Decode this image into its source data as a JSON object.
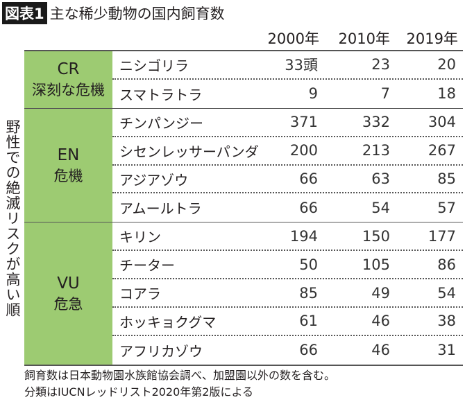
{
  "title": {
    "tag": "図表1",
    "text": "主な稀少動物の国内飼育数"
  },
  "side_label": "野性での絶滅リスクが高い順",
  "chart_data": {
    "type": "table",
    "title": "主な稀少動物の国内飼育数",
    "columns": [
      "2000年",
      "2010年",
      "2019年"
    ],
    "unit_suffix_first_cell": "頭",
    "groups": [
      {
        "code": "CR",
        "label": "深刻な危機",
        "rows": [
          {
            "name": "ニシゴリラ",
            "values": [
              "33頭",
              "23",
              "20"
            ]
          },
          {
            "name": "スマトラトラ",
            "values": [
              "9",
              "7",
              "18"
            ]
          }
        ]
      },
      {
        "code": "EN",
        "label": "危機",
        "rows": [
          {
            "name": "チンパンジー",
            "values": [
              "371",
              "332",
              "304"
            ]
          },
          {
            "name": "シセンレッサーパンダ",
            "values": [
              "200",
              "213",
              "267"
            ]
          },
          {
            "name": "アジアゾウ",
            "values": [
              "66",
              "63",
              "85"
            ]
          },
          {
            "name": "アムールトラ",
            "values": [
              "66",
              "54",
              "57"
            ]
          }
        ]
      },
      {
        "code": "VU",
        "label": "危急",
        "rows": [
          {
            "name": "キリン",
            "values": [
              "194",
              "150",
              "177"
            ]
          },
          {
            "name": "チーター",
            "values": [
              "50",
              "105",
              "86"
            ]
          },
          {
            "name": "コアラ",
            "values": [
              "85",
              "49",
              "54"
            ]
          },
          {
            "name": "ホッキョクグマ",
            "values": [
              "61",
              "46",
              "38"
            ]
          },
          {
            "name": "アフリカゾウ",
            "values": [
              "66",
              "46",
              "31"
            ]
          }
        ]
      }
    ],
    "category_color": "#9dcb72"
  },
  "notes": [
    "飼育数は日本動物園水族館協会調べ、加盟園以外の数を含む。",
    "分類はIUCNレッドリスト2020年第2版による"
  ]
}
